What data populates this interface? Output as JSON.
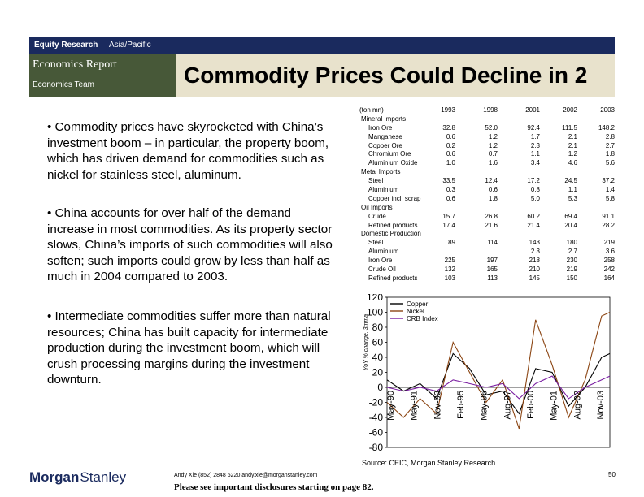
{
  "header": {
    "division": "Equity Research",
    "region": "Asia/Pacific",
    "report": "Economics Report",
    "team": "Economics Team"
  },
  "title": "Commodity Prices Could Decline in 2",
  "bullets": [
    "• Commodity prices have skyrocketed with China’s investment boom – in particular, the property boom, which has driven demand for commodities such as nickel for stainless steel, aluminum.",
    "• China accounts for over half of the demand increase in most commodities.  As its property sector slows, China’s imports of such commodities will also soften; such imports could grow by less than half as much in 2004 compared to 2003.",
    "• Intermediate commodities suffer more than natural resources; China has built capacity for intermediate production during the investment boom, which will crush processing margins during the investment downturn."
  ],
  "table": {
    "unit_label": "(ton mn)",
    "years": [
      "1993",
      "1998",
      "2001",
      "2002",
      "2003"
    ],
    "rows": [
      {
        "label": "Mineral Imports",
        "indent": 0,
        "values": [
          "",
          "",
          "",
          "",
          ""
        ]
      },
      {
        "label": "Iron Ore",
        "indent": 1,
        "values": [
          "32.8",
          "52.0",
          "92.4",
          "111.5",
          "148.2"
        ]
      },
      {
        "label": "Manganese",
        "indent": 1,
        "values": [
          "0.6",
          "1.2",
          "1.7",
          "2.1",
          "2.8"
        ]
      },
      {
        "label": "Copper Ore",
        "indent": 1,
        "values": [
          "0.2",
          "1.2",
          "2.3",
          "2.1",
          "2.7"
        ]
      },
      {
        "label": "Chromium Ore",
        "indent": 1,
        "values": [
          "0.6",
          "0.7",
          "1.1",
          "1.2",
          "1.8"
        ]
      },
      {
        "label": "Aluminium Oxide",
        "indent": 1,
        "values": [
          "1.0",
          "1.6",
          "3.4",
          "4.6",
          "5.6"
        ]
      },
      {
        "label": "Metal Imports",
        "indent": 0,
        "values": [
          "",
          "",
          "",
          "",
          ""
        ]
      },
      {
        "label": "Steel",
        "indent": 1,
        "values": [
          "33.5",
          "12.4",
          "17.2",
          "24.5",
          "37.2"
        ]
      },
      {
        "label": "Aluminium",
        "indent": 1,
        "values": [
          "0.3",
          "0.6",
          "0.8",
          "1.1",
          "1.4"
        ]
      },
      {
        "label": "Copper incl. scrap",
        "indent": 1,
        "values": [
          "0.6",
          "1.8",
          "5.0",
          "5.3",
          "5.8"
        ]
      },
      {
        "label": "Oil Imports",
        "indent": 0,
        "values": [
          "",
          "",
          "",
          "",
          ""
        ]
      },
      {
        "label": "Crude",
        "indent": 1,
        "values": [
          "15.7",
          "26.8",
          "60.2",
          "69.4",
          "91.1"
        ]
      },
      {
        "label": "Refined products",
        "indent": 1,
        "values": [
          "17.4",
          "21.6",
          "21.4",
          "20.4",
          "28.2"
        ]
      },
      {
        "label": "Domestic Production",
        "indent": 0,
        "values": [
          "",
          "",
          "",
          "",
          ""
        ]
      },
      {
        "label": "Steel",
        "indent": 1,
        "values": [
          "89",
          "114",
          "143",
          "180",
          "219"
        ]
      },
      {
        "label": "Aluminium",
        "indent": 1,
        "values": [
          "",
          "",
          "2.3",
          "2.7",
          "3.6"
        ]
      },
      {
        "label": "Iron Ore",
        "indent": 1,
        "values": [
          "225",
          "197",
          "218",
          "230",
          "258"
        ]
      },
      {
        "label": "Crude Oil",
        "indent": 1,
        "values": [
          "132",
          "165",
          "210",
          "219",
          "242"
        ]
      },
      {
        "label": "Refined products",
        "indent": 1,
        "values": [
          "103",
          "113",
          "145",
          "150",
          "164"
        ]
      }
    ]
  },
  "chart_data": {
    "type": "line",
    "title": "",
    "ylabel": "YoY % change, 3mma",
    "ylim": [
      -80,
      120
    ],
    "yticks": [
      -80,
      -60,
      -40,
      -20,
      0,
      20,
      40,
      60,
      80,
      100,
      120
    ],
    "xticks": [
      "May-90",
      "May-91",
      "Nov-93",
      "Feb-95",
      "May-96",
      "Aug-97",
      "Feb-00",
      "May-01",
      "Aug-02",
      "Nov-03"
    ],
    "x": [
      1990.4,
      1991.4,
      1992.4,
      1993.4,
      1994.4,
      1995.4,
      1996.4,
      1997.4,
      1998.4,
      1999.4,
      2000.4,
      2001.4,
      2002.4,
      2003.4,
      2003.9
    ],
    "series": [
      {
        "name": "Copper",
        "color": "#000000",
        "values": [
          10,
          -5,
          5,
          -15,
          45,
          25,
          -10,
          -5,
          -35,
          25,
          20,
          -25,
          0,
          40,
          45
        ]
      },
      {
        "name": "Nickel",
        "color": "#8b4513",
        "values": [
          -20,
          -40,
          -15,
          -35,
          60,
          20,
          -20,
          10,
          -55,
          90,
          30,
          -40,
          10,
          95,
          100
        ]
      },
      {
        "name": "CRB Index",
        "color": "#7b1fa2",
        "values": [
          0,
          -5,
          0,
          -5,
          10,
          5,
          0,
          5,
          -15,
          5,
          15,
          -15,
          0,
          10,
          15
        ]
      }
    ],
    "source": "Source: CEIC, Morgan Stanley Research"
  },
  "footer": {
    "logo_primary": "Morgan",
    "logo_secondary": "Stanley",
    "contact": "Andy Xie (852) 2848 6220  andy.xie@morganstanley.com",
    "disclosure": "Please see important disclosures starting on page 82.",
    "page_number": "50"
  },
  "colors": {
    "topbar": "#1a2a5e",
    "report_box": "#475838",
    "title_box": "#e8e2cc"
  }
}
